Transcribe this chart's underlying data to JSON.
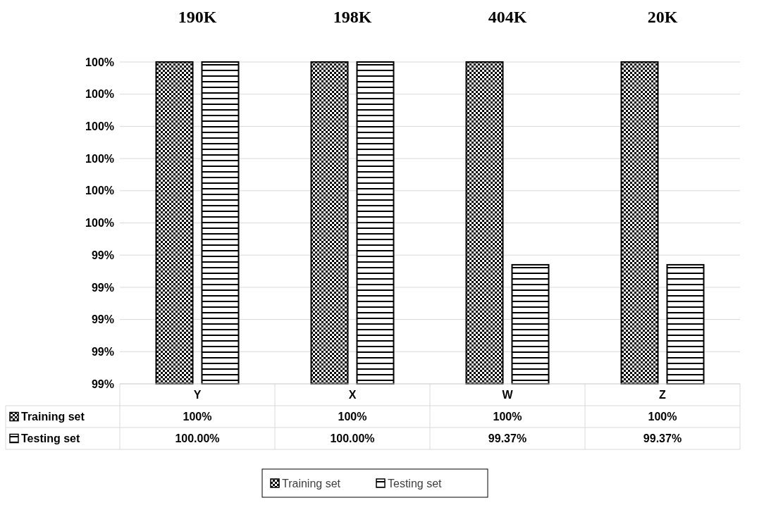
{
  "chart_data": {
    "type": "bar",
    "categories": [
      "Y",
      "X",
      "W",
      "Z"
    ],
    "series": [
      {
        "name": "Training set",
        "color": "#000000",
        "values": [
          100,
          100,
          100,
          100
        ],
        "value_labels": [
          "100%",
          "100%",
          "100%",
          "100%"
        ]
      },
      {
        "name": "Testing set",
        "color": "#000000",
        "values": [
          100,
          100,
          99.37,
          99.37
        ],
        "value_labels": [
          "100.00%",
          "100.00%",
          "99.37%",
          "99.37%"
        ]
      }
    ],
    "ylim": [
      99,
      100
    ],
    "yticks": [
      {
        "value": 99,
        "label": "99%"
      },
      {
        "value": 99.1,
        "label": "99%"
      },
      {
        "value": 99.2,
        "label": "99%"
      },
      {
        "value": 99.3,
        "label": "99%"
      },
      {
        "value": 99.4,
        "label": "99%"
      },
      {
        "value": 99.5,
        "label": "100%"
      },
      {
        "value": 99.6,
        "label": "100%"
      },
      {
        "value": 99.7,
        "label": "100%"
      },
      {
        "value": 99.8,
        "label": "100%"
      },
      {
        "value": 99.9,
        "label": "100%"
      },
      {
        "value": 100,
        "label": "100%"
      }
    ],
    "annotations": [
      "190K",
      "198K",
      "404K",
      "20K"
    ],
    "grid": "y",
    "legend": "bottom"
  }
}
